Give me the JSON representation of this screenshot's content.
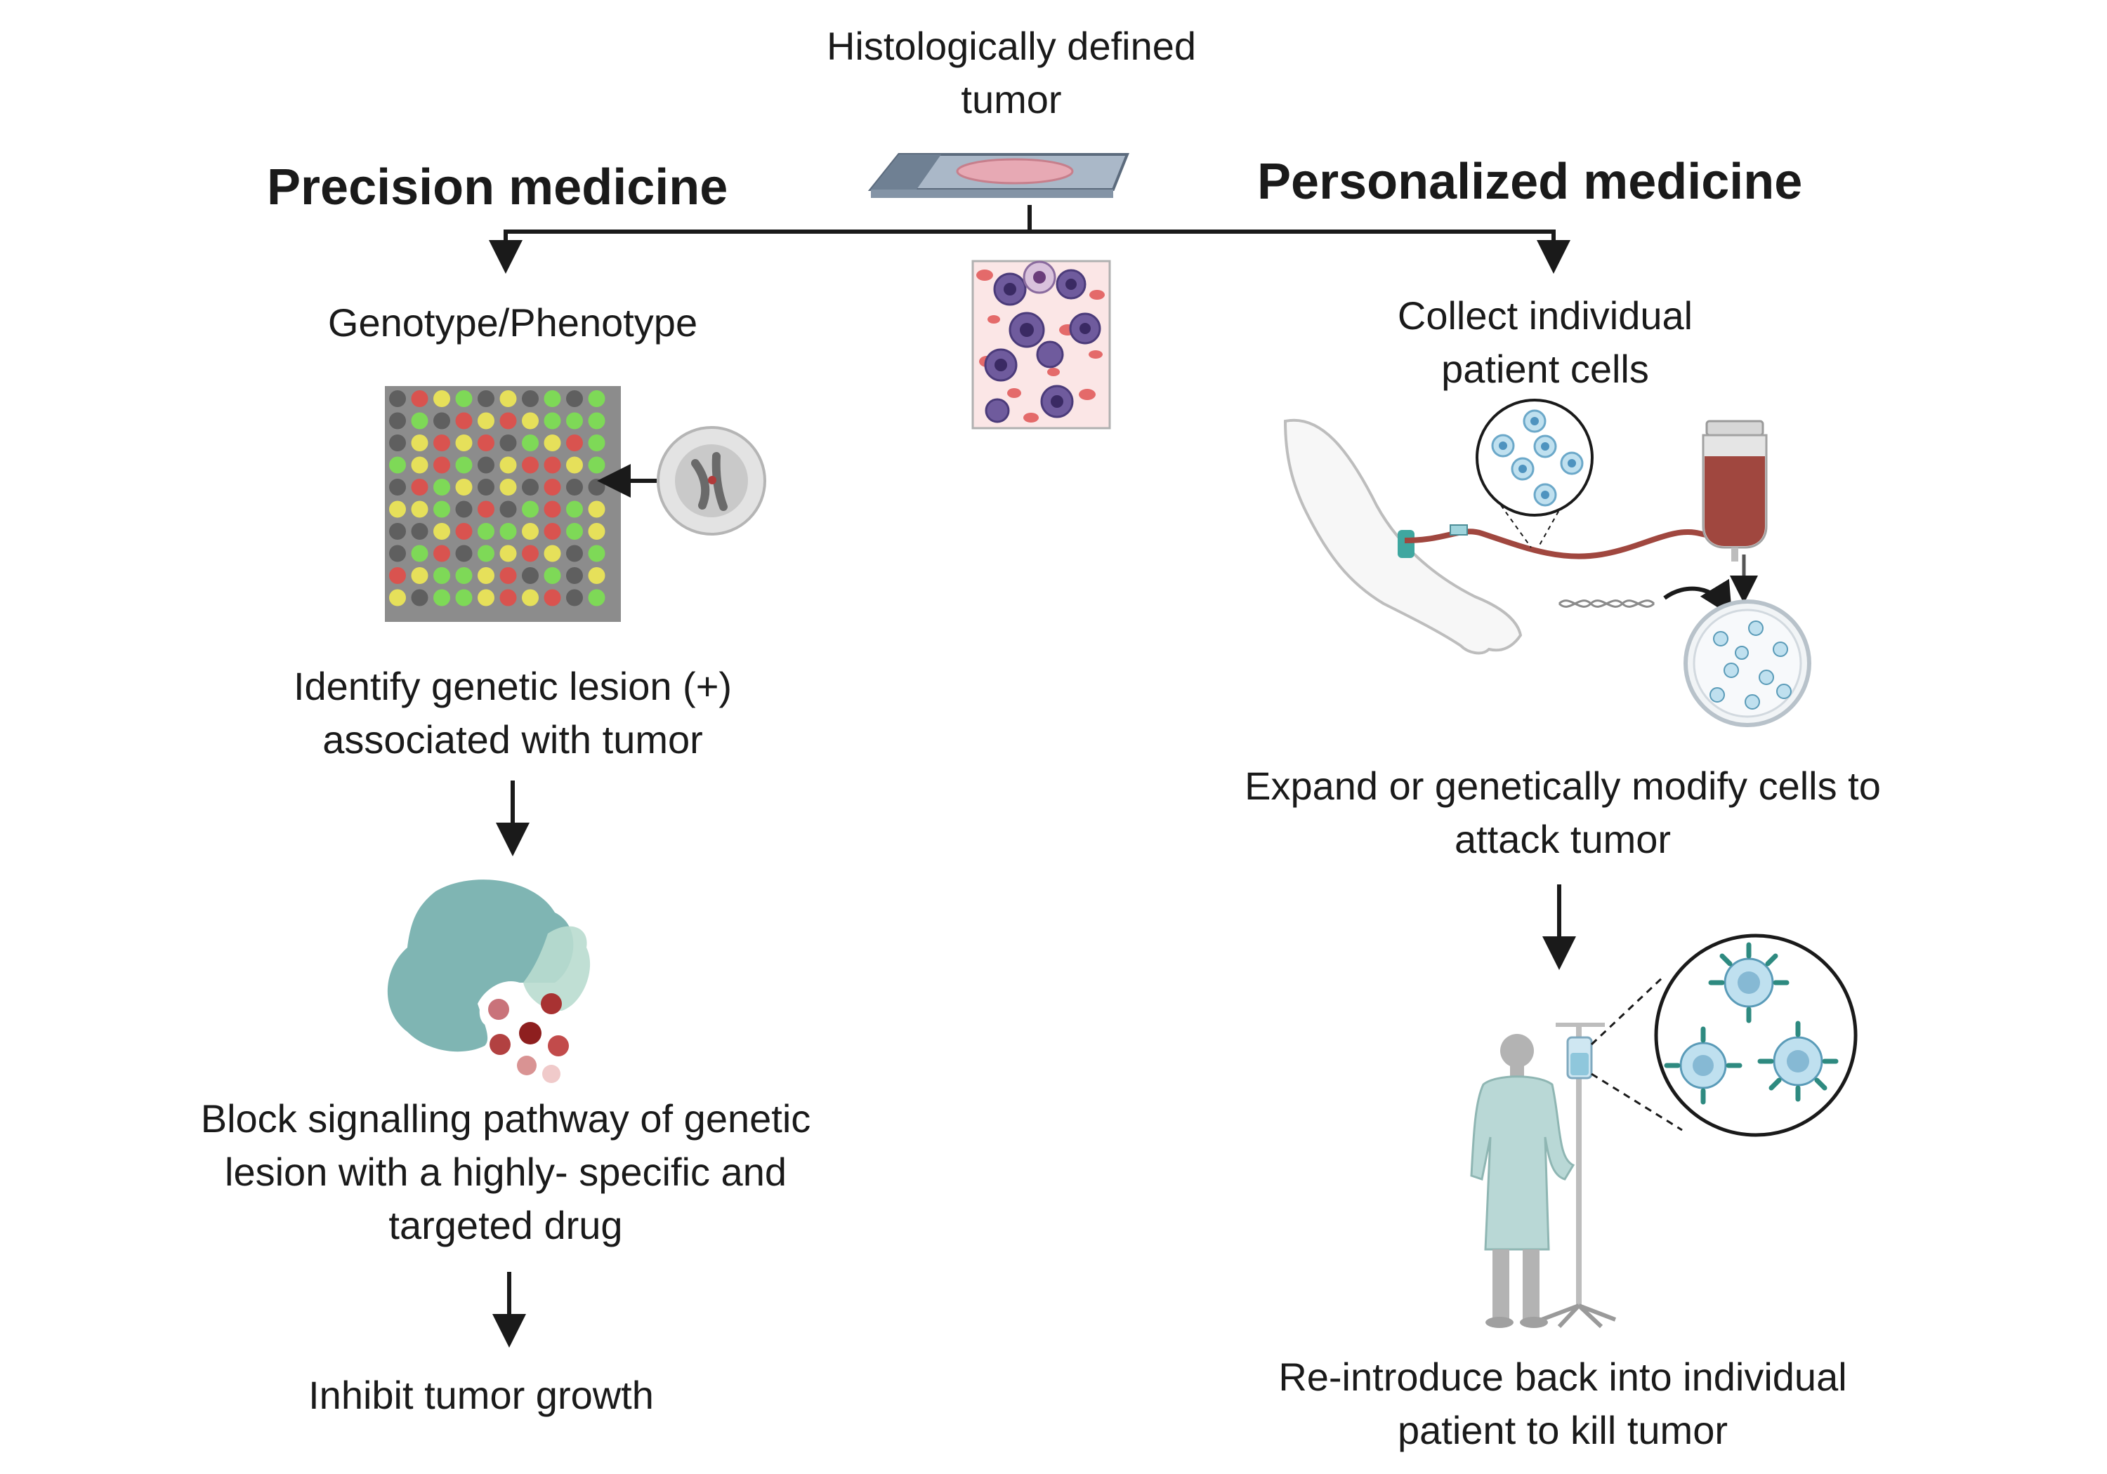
{
  "top": {
    "title": "Histologically defined\ntumor"
  },
  "left": {
    "heading": "Precision medicine",
    "step1": "Genotype/Phenotype",
    "step2": "Identify genetic lesion (+)\nassociated with tumor",
    "step3": "Block signalling pathway of genetic\nlesion with a highly- specific and\ntargeted drug",
    "step4": "Inhibit tumor growth"
  },
  "right": {
    "heading": "Personalized medicine",
    "step1": "Collect individual\npatient cells",
    "step2": "Expand or genetically modify cells to\nattack tumor",
    "step3": "Re-introduce back into individual\npatient to kill tumor"
  },
  "colors": {
    "arrow": "#1a1a1a",
    "microarray_bg": "#8c8c8c",
    "dot_red": "#d9534f",
    "dot_green": "#7ed957",
    "dot_yellow": "#e6e05a",
    "dot_gray": "#5f5f5f",
    "protein": "#7fb5b3",
    "drug": "#a83232",
    "blood": "#a0473f",
    "gown": "#b9d8d6"
  }
}
